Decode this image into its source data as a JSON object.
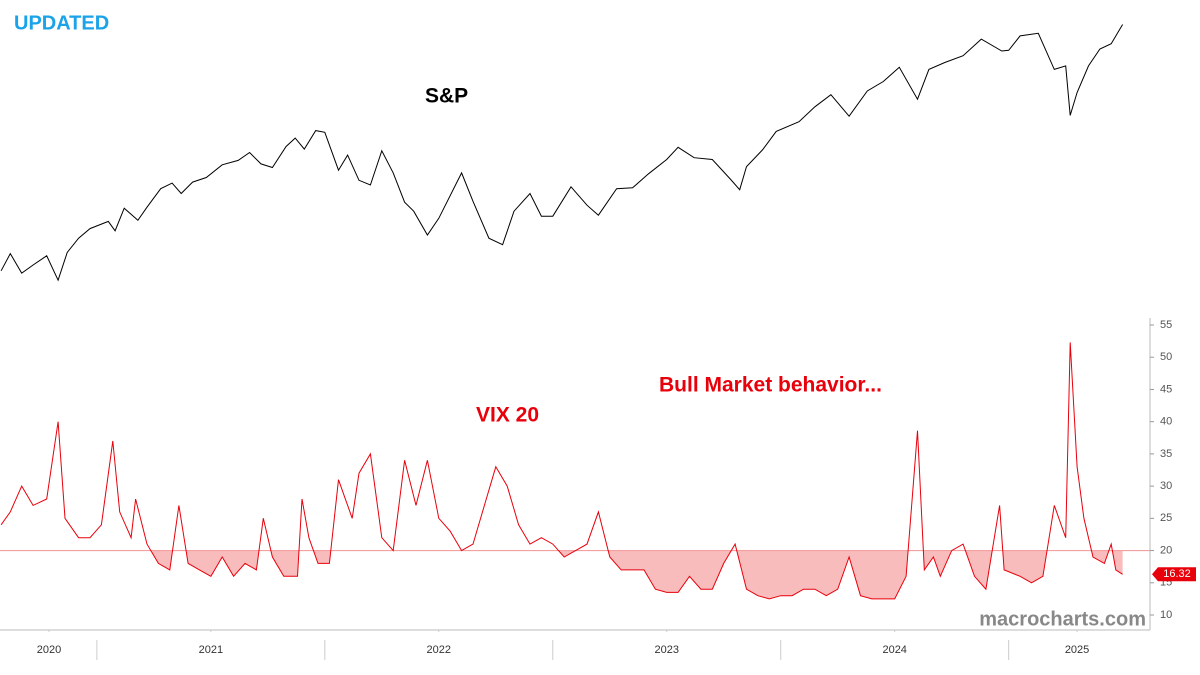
{
  "header": "UPDATED",
  "watermark": "macrocharts.com",
  "chart_data": [
    {
      "type": "line",
      "title": "S&P",
      "color": "#000000",
      "log": true,
      "xlim": [
        2020.575,
        2025.62
      ],
      "ylim": [
        3000,
        6500
      ],
      "x": [
        2020.58,
        2020.62,
        2020.67,
        2020.72,
        2020.78,
        2020.83,
        2020.87,
        2020.92,
        2020.97,
        2021.05,
        2021.08,
        2021.12,
        2021.18,
        2021.22,
        2021.28,
        2021.33,
        2021.37,
        2021.42,
        2021.48,
        2021.55,
        2021.62,
        2021.67,
        2021.72,
        2021.77,
        2021.83,
        2021.87,
        2021.91,
        2021.96,
        2022.0,
        2022.06,
        2022.1,
        2022.15,
        2022.2,
        2022.25,
        2022.3,
        2022.35,
        2022.39,
        2022.45,
        2022.5,
        2022.6,
        2022.65,
        2022.72,
        2022.78,
        2022.83,
        2022.9,
        2022.95,
        2023.0,
        2023.08,
        2023.15,
        2023.2,
        2023.28,
        2023.35,
        2023.42,
        2023.5,
        2023.55,
        2023.62,
        2023.7,
        2023.78,
        2023.82,
        2023.85,
        2023.92,
        2023.98,
        2024.08,
        2024.15,
        2024.22,
        2024.3,
        2024.38,
        2024.45,
        2024.52,
        2024.6,
        2024.65,
        2024.72,
        2024.8,
        2024.88,
        2024.97,
        2025.0,
        2025.05,
        2025.13,
        2025.2,
        2025.25,
        2025.27,
        2025.3,
        2025.35,
        2025.4,
        2025.45,
        2025.5
      ],
      "values": [
        3350,
        3500,
        3330,
        3400,
        3480,
        3270,
        3510,
        3640,
        3730,
        3800,
        3710,
        3930,
        3810,
        3940,
        4130,
        4190,
        4080,
        4200,
        4250,
        4390,
        4440,
        4530,
        4400,
        4360,
        4600,
        4700,
        4570,
        4790,
        4770,
        4330,
        4500,
        4220,
        4170,
        4550,
        4300,
        3990,
        3900,
        3670,
        3830,
        4300,
        4000,
        3640,
        3580,
        3900,
        4080,
        3850,
        3850,
        4150,
        3960,
        3860,
        4130,
        4140,
        4290,
        4450,
        4590,
        4470,
        4450,
        4230,
        4120,
        4370,
        4560,
        4780,
        4900,
        5090,
        5250,
        4970,
        5300,
        5430,
        5630,
        5190,
        5600,
        5700,
        5800,
        6050,
        5870,
        5880,
        6100,
        6140,
        5600,
        5650,
        4980,
        5280,
        5650,
        5900,
        5980,
        6280
      ]
    },
    {
      "type": "threshold-area",
      "title": "VIX 20",
      "annotation": "Bull Market behavior...",
      "color": "#e8000b",
      "threshold": 20,
      "threshold_color": "#f4a0a0",
      "fill": "#f9bcbc",
      "xlim": [
        2020.575,
        2025.62
      ],
      "ylim": [
        10,
        55
      ],
      "yticks": [
        10,
        15,
        20,
        25,
        30,
        35,
        40,
        45,
        50,
        55
      ],
      "xticks": [
        {
          "value": 2020.79,
          "label": "2020"
        },
        {
          "value": 2021.5,
          "label": "2021"
        },
        {
          "value": 2022.5,
          "label": "2022"
        },
        {
          "value": 2023.5,
          "label": "2023"
        },
        {
          "value": 2024.5,
          "label": "2024"
        },
        {
          "value": 2025.3,
          "label": "2025"
        }
      ],
      "x": [
        2020.58,
        2020.62,
        2020.67,
        2020.72,
        2020.78,
        2020.83,
        2020.86,
        2020.92,
        2020.97,
        2021.02,
        2021.07,
        2021.1,
        2021.15,
        2021.17,
        2021.22,
        2021.27,
        2021.32,
        2021.36,
        2021.4,
        2021.45,
        2021.5,
        2021.55,
        2021.6,
        2021.65,
        2021.7,
        2021.73,
        2021.77,
        2021.82,
        2021.88,
        2021.9,
        2021.93,
        2021.97,
        2022.02,
        2022.06,
        2022.12,
        2022.15,
        2022.2,
        2022.25,
        2022.3,
        2022.35,
        2022.4,
        2022.45,
        2022.5,
        2022.55,
        2022.6,
        2022.65,
        2022.7,
        2022.75,
        2022.8,
        2022.85,
        2022.9,
        2022.95,
        2023.0,
        2023.05,
        2023.1,
        2023.15,
        2023.2,
        2023.25,
        2023.3,
        2023.35,
        2023.4,
        2023.45,
        2023.5,
        2023.55,
        2023.6,
        2023.65,
        2023.7,
        2023.75,
        2023.8,
        2023.85,
        2023.9,
        2023.95,
        2024.0,
        2024.05,
        2024.1,
        2024.15,
        2024.2,
        2024.25,
        2024.3,
        2024.35,
        2024.4,
        2024.45,
        2024.5,
        2024.55,
        2024.6,
        2024.63,
        2024.67,
        2024.7,
        2024.75,
        2024.8,
        2024.85,
        2024.9,
        2024.96,
        2024.98,
        2025.05,
        2025.1,
        2025.15,
        2025.2,
        2025.25,
        2025.27,
        2025.3,
        2025.33,
        2025.37,
        2025.42,
        2025.45,
        2025.47,
        2025.5
      ],
      "values": [
        24,
        26,
        30,
        27,
        28,
        40,
        25,
        22,
        22,
        24,
        37,
        26,
        22,
        28,
        21,
        18,
        17,
        27,
        18,
        17,
        16,
        19,
        16,
        18,
        17,
        25,
        19,
        16,
        16,
        28,
        22,
        18,
        18,
        31,
        25,
        32,
        35,
        22,
        20,
        34,
        27,
        34,
        25,
        23,
        20,
        21,
        27,
        33,
        30,
        24,
        21,
        22,
        21,
        19,
        20,
        21,
        26,
        19,
        17,
        17,
        17,
        14,
        13.5,
        13.5,
        16,
        14,
        14,
        18,
        21,
        14,
        13,
        12.5,
        13,
        13,
        14,
        14,
        13,
        14,
        19,
        13,
        12.5,
        12.5,
        12.5,
        16,
        38.6,
        17,
        19,
        16,
        20,
        21,
        16,
        14,
        27,
        17,
        16,
        15,
        16,
        27,
        22,
        52.3,
        33,
        25,
        19,
        18,
        21,
        17,
        16.32
      ]
    }
  ]
}
